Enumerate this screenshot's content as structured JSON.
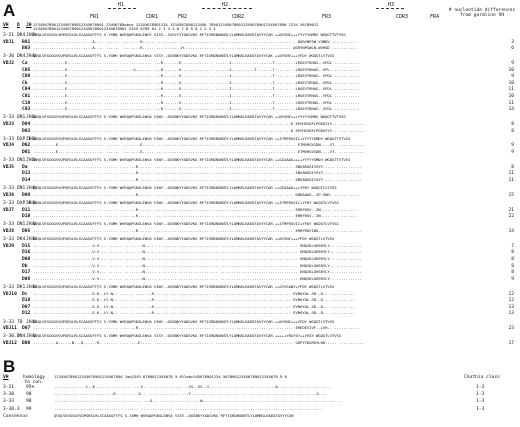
{
  "panels": {
    "a_letter": "A",
    "b_letter": "B"
  },
  "panel_a": {
    "regions": {
      "fr1": "FR1",
      "h1": "H1",
      "cdr1": "CDR1",
      "fr2": "FR2",
      "h2": "H2",
      "cdr2": "CDR2",
      "fr3": "FR3",
      "h3": "H3",
      "cdr3": "CDR3",
      "fr4": "FR4"
    },
    "header_note": "# nucleotide differences from germline VH",
    "col_vh": "VH",
    "col_d": "D",
    "col_jh": "JH",
    "numbering1": "1234567890123456789012345678901 23456789abcd 12345678901234 1234567890123456 7890123456789012345678901234567890 1234 56789012",
    "numbering2": "12345678901234567890123456789012345678901 2345 6789 01 2 3 4 5 6 7 8 9 0 1 2 3 4",
    "rows": [
      {
        "vh": "3-21",
        "d": "DK4",
        "jh": "JH6b",
        "seq": "EVQLVESGGGLVKPGGSLRLSCAASGFTFS S-YSMN WVRQAPGKGLEWVS SISS--SSSYIYYADSVKG RFTISRDNAKNSLYLQMNSLRAEDTAVYYCAR ++DYSNY+++YYYYYGMDV WGQGTTVTVSS",
        "n": ""
      },
      {
        "vh": "VDJ1",
        "d": "",
        "jh": "",
        "seq": "",
        "clone": "B01",
        "mut": "..........................A.... ...... ........R..... .......................... .................................. DGRYNPSW-YGMDV ...........",
        "n": "3"
      },
      {
        "vh": "",
        "d": "",
        "jh": "",
        "clone": "B03",
        "mut": "..........................A.... ...... ........R..... ...........H.............. ................................ DGRYNPSWLB-WVHGD ...........",
        "n": "6"
      },
      {
        "vh": "3-30",
        "d": "DK4",
        "jh": "JH4b",
        "seq": "QVQLVESGGGVVQPGRSLRLSCAASGFTFS S-YGMH WVRQAPGKGLEWVA VISY--DGSNKYYADSVKG RFTISRDNSKNTLYLQMNSLRAEDTAVYYCAK ++DYSNY+++YFDY WGQGTLVTVSS",
        "n": ""
      },
      {
        "vh": "VDJ2",
        "d": "",
        "jh": "",
        "clone": "Ca",
        "mut": "..............E............... ...... .............. ...R.......E.............. ......I..................T........ LRGEVTRHAS--VFDL ...........",
        "n": "9"
      },
      {
        "vh": "",
        "d": "",
        "jh": "",
        "clone": "C05",
        "mut": "..............E............... ...... ......S....... ...R.......E.............. ......I..........T.......T........ LRGEVTRHAS--VPL- ...........",
        "n": "10"
      },
      {
        "vh": "",
        "d": "",
        "jh": "",
        "clone": "C09",
        "mut": "..............E............... ...... .............. ...R.......E.............. ......I..................T........ LRGEVTRHAS--VFDL ...........",
        "n": "9"
      },
      {
        "vh": "",
        "d": "",
        "jh": "",
        "clone": "Cb",
        "mut": "..............E............... ...... .............. ...R.......E.............. ......I..................T........ LRGEVTRHAS--VFDL ...........",
        "n": "10"
      },
      {
        "vh": "",
        "d": "",
        "jh": "",
        "clone": "C04",
        "mut": "..............E............... ...... .............. ...R.......E.............. ......I..................T........ LRGEVTRHAS--VFDL ...........",
        "n": "11"
      },
      {
        "vh": "",
        "d": "",
        "jh": "",
        "clone": "C01",
        "mut": "..............E............... ...... .............. ...R.......E.............. ......I..................T........ LRGEVTRHAS--VFDL ...........",
        "n": "10"
      },
      {
        "vh": "",
        "d": "",
        "jh": "",
        "clone": "C10",
        "mut": "..............E............... ...... .............. ...R.......E.............. ......I..................T........ LRGEVTRHAS--VFDL ...........",
        "n": "11"
      },
      {
        "vh": "",
        "d": "",
        "jh": "",
        "clone": "C03",
        "mut": "..............E............... ...... .............. ...R.......E.............. ......I..................T........ LRGEVTRHAS--VFDL ...........",
        "n": "14"
      },
      {
        "vh": "3-33",
        "d": "DN1",
        "jh": "JH6b",
        "seq": "QVQLVESGGGVVQPGRSLRLSCAASGFTFS S-YGMH WVRQAPGKGLEWVA VIWY--DGSNKYYADSVKG RFTISRDNSKNTLYLQMNSLRAEDTAVYYCAR ++DYSNY+++YYYYYGMDV WGQGTTVTVSS",
        "n": ""
      },
      {
        "vh": "VDJ3",
        "d": "",
        "jh": "",
        "clone": "D04",
        "mut": ".............................. ...... .............. ......................... ..................................K EEVHSVQFLPGRGYYY-. ...........",
        "n": "8"
      },
      {
        "vh": "",
        "d": "",
        "jh": "",
        "clone": "D03",
        "mut": ".............................. ...... .............. ......................... ..................................K EEVHSVQFLPGRGYYY-. ...........",
        "n": "8"
      },
      {
        "vh": "3-33",
        "d": "DXP'1",
        "jh": "JH6b",
        "seq": "QVQLVESGGGVVQPGRSLRLSCAASGFTFS S-YGMH WVRQAPGKGLEWVA VIWY--DGSNKYYADSVKG RFTISRDNSKNTLYLQMNSLRAEDTAVYYCAR ++ITMFRGVII+YYYYYGMDV WGQGTTVTVSS",
        "n": ""
      },
      {
        "vh": "VDJ4",
        "d": "",
        "jh": "",
        "clone": "D02",
        "mut": "..........E.................... ...... ........E..... .......................... .................................. ETMVRGVIDN----VT. ...........",
        "n": "9"
      },
      {
        "vh": "",
        "d": "",
        "jh": "",
        "clone": "D01",
        "mut": "..........E.................... ...... ........E..... .......................... .................................. ETMVRGVIDN----VT. ...........",
        "n": "9"
      },
      {
        "vh": "3-33",
        "d": "DN1",
        "jh": "JH6b",
        "seq": "QVQLVESGGGVVQPGRSLRLSCAASGFTFS S-YGMH WVRQAPGKGLEWVA VIWY--DGSNKYYADSVKG RFTISRDNSKNTLYLQMNSLRAEDTAVYYCAR ++GIAAAG++++YYYYYGMDV WGQGTTVTVSS",
        "n": ""
      },
      {
        "vh": "VDJ5",
        "d": "",
        "jh": "",
        "clone": "Da",
        "mut": ".............................. ...... .......R...... .......................... .................................. ENVARGGIYGYY----. ...........",
        "n": "8"
      },
      {
        "vh": "",
        "d": "",
        "jh": "",
        "clone": "D13",
        "mut": ".............................. ...... .......R...... .......................... .................................. ENVARGGIYGYY----. ...........",
        "n": "11"
      },
      {
        "vh": "",
        "d": "",
        "jh": "",
        "clone": "D14",
        "mut": ".............................. ...... .......R...... .......................... .................................. ENVARGGIYGYY----. ...........",
        "n": "11"
      },
      {
        "vh": "3-33",
        "d": "DN1",
        "jh": "JH4b",
        "seq": "QVQLVESGGGVVQPGRSLRLSCAASGFTFS S-YGMH WVRQAPGKGLEWVA VIWY--DGSNKYYADSVKG RFTISRDNSKNTLYLQMNSLRAEDTAVYYCAR ++GIAAAG+++YFDY WGQGTLVTVSS",
        "n": ""
      },
      {
        "vh": "VDJ6",
        "d": "",
        "jh": "",
        "clone": "D09",
        "mut": ".............................. ...... .......R...... .......................... .................................. DQRAAAG--IP-VDR- ...........",
        "n": "15"
      },
      {
        "vh": "3-33",
        "d": "DXP'4",
        "jh": "JH4b",
        "seq": "QVQLVESGGGVVQPGRSLRLSCAASGFTFS S-YGMH WVRQAPGKGLEWVA VIWY--DGSNKYYADSVKG RFTISRDNSKNTLYLQMNSLRAEDTAVYYCAR ++ITMFRGVII+YFDY WGQGTLVTVSS",
        "n": ""
      },
      {
        "vh": "VDJ7",
        "d": "",
        "jh": "",
        "clone": "D11",
        "mut": ".............................. ...... .......R...... .......................... .................................. ERRFRGV--IN---. ...........",
        "n": "21"
      },
      {
        "vh": "",
        "d": "",
        "jh": "",
        "clone": "D10",
        "mut": ".............................. ...... .......R...... .......................... .................................. ERRFRGV--IN---. ...........",
        "n": "22"
      },
      {
        "vh": "3-33",
        "d": "DN1",
        "jh": "JH4b",
        "seq": "QVQLVESGGGVVQPGRSLRLSCAASGFTFS S-YGMH WVRQAPGKGLEWVA VIWY--DGSNKYYADSVKG RFTISRDNSKNTLYLQMNSLRAEDTAVYYCAR ++ITMFRGVII+YFDY WGQGTLVTVSS",
        "n": ""
      },
      {
        "vh": "VDJ8",
        "d": "",
        "jh": "",
        "clone": "D05",
        "mut": ".............................. ...... .......R...... .......................... .................................. ERRFRGVIDK------. ...........",
        "n": "14"
      },
      {
        "vh": "3-33",
        "d": "DK4",
        "jh": "JH4b",
        "seq": "QVQLVESGGGVVQPGRSLRLSCAASGFTFS S-YGMH WVRQAPGKGLEWVA VIWY--DGSNKYYADSVKG RFTISRDNSKNTLYLQMNSLRAEDTAVYYCAR ++DYSNY+++YFDY WGQGTLVTVSS",
        "n": ""
      },
      {
        "vh": "VDJ9",
        "d": "",
        "jh": "",
        "clone": "D15",
        "mut": "..........................V.V... ...... ........N..... .......................... .................................. ENQIKLGHSRYLY-- ...........",
        "n": "7"
      },
      {
        "vh": "",
        "d": "",
        "jh": "",
        "clone": "D16",
        "mut": "..........................V.V... ...... ........N..... .......................... .................................. ENQIKLGHSRYLY-- ...........",
        "n": "8"
      },
      {
        "vh": "",
        "d": "",
        "jh": "",
        "clone": "D08",
        "mut": "..........................V.V... ...... ........N..... .......................... .................................. ENQIKLGHSRYLY-- ...........",
        "n": "8"
      },
      {
        "vh": "",
        "d": "",
        "jh": "",
        "clone": "Db",
        "mut": "..........................V.V... ...... ........N..... .......................... .................................. ENQIKLGHSRYLY-- ...........",
        "n": "8"
      },
      {
        "vh": "",
        "d": "",
        "jh": "",
        "clone": "D17",
        "mut": "..........................V.V... ...... ........N..... .......................... .................................. ENQIKLGHSRYLY-- ...........",
        "n": "8"
      },
      {
        "vh": "",
        "d": "",
        "jh": "",
        "clone": "D06",
        "mut": "..........................V.V... ...... ........N..... .......................... .................................. ENQIKLGHSRYLY-- ...........",
        "n": "9"
      },
      {
        "vh": "3-33",
        "d": "DK1",
        "jh": "JH4b",
        "seq": "QVQLVESGGGVVQPGRSLRLSCAASGFTFS S-YGMH WVRQAPGKGLEWVA VIWY--DGSNKYYADSVKG RFTISRDNSKNTLYLQMNSLRAEDTAVYYCAR ++GYSSGWY+YFDY WGQGTLVTVSS",
        "n": ""
      },
      {
        "vh": "VDJ10",
        "d": "",
        "jh": "",
        "clone": "Dc",
        "mut": "..........................E.K..LY.N.. ...... .......R...... .................. .................................. EVRKYAL-SR--D-. ...........",
        "n": "12"
      },
      {
        "vh": "",
        "d": "",
        "jh": "",
        "clone": "D18",
        "mut": "..........................E.K..LY.N.. ...... .......R...... .................. .................................. EVRKYAL-SR--D-. ...........",
        "n": "12"
      },
      {
        "vh": "",
        "d": "",
        "jh": "",
        "clone": "D07",
        "mut": "..........................E.K..LY.N.. ...... .......R...... .................. .................................. EVRKYAL-SR--D-. ...........",
        "n": "13"
      },
      {
        "vh": "",
        "d": "",
        "jh": "",
        "clone": "D12",
        "mut": "..........................E.K..LY.N.. ...... .......R...... .................. .................................. EVRKYAL-SR--D-. ...........",
        "n": "13"
      },
      {
        "vh": "3-33",
        "d": "7D",
        "jh": "JH4b",
        "seq": "QVQLVESGGGVVQPGRSLRLSCAASGFTFS S-YGMH WVRQAPGKGLEWVA VIWY--DGSNKYYADSVKG RFTISRDNSKNTLYLQMNSLRAEDTAVYYCAR ++DYSNY+++YFDY WGQGTLVTVSS",
        "n": ""
      },
      {
        "vh": "VDJ11",
        "d": "",
        "jh": "",
        "clone": "D07",
        "mut": ".............................. ...... .......R...... .......................... .................................. EREDEVIVF--LVH-. ...........",
        "n": "23"
      },
      {
        "vh": "3-30.3",
        "d": "DN4",
        "jh": "JH4b",
        "seq": "QVQLVESGGGVVQPGRSLRLSCAASGFTFS S-YAMH WVRQAPGKGLEWVA VISY--DGSNKYYADSVKG RFTISRDNSKNTLYLQMNSLRAEDTAVYYCAR +++++YRGYSY++YFDY WGQGTLVTVSS",
        "n": ""
      },
      {
        "vh": "VDJ12",
        "d": "",
        "jh": "",
        "clone": "B00",
        "mut": "..........A......N...Q......R. ...... ........E..... .......................... .................................. GGPYYDSRGYLRH.---. ...........",
        "n": "17"
      }
    ]
  },
  "panel_b": {
    "col_vh": "VH",
    "col_homology": "homology to con.",
    "col_chothia": "Chothia class",
    "numbering": "123456789012345678901234567890 1ab2345 6789012345678 9 012abc345678901234 567890123456789012345678 9 0",
    "rows": [
      {
        "vh": "3-21",
        "hom": "95%",
        "seq": "..............L..K................ ...S.. .............. ..SS--SS..I................. ...........A.......................",
        "class": "1-3"
      },
      {
        "vh": "3-30",
        "hom": "98",
        "seq": "..........................R...... ...G.. .............. ...Y........................ ..............................S....",
        "class": "1-3"
      },
      {
        "vh": "3-33",
        "hom": "98",
        "seq": "...................................... ...G.. .............. ...W........................ ....................................",
        "class": "1-3"
      },
      {
        "vh": "3-30.3",
        "hom": "99",
        "seq": ".............................. ...... .............. ............................ ....................................",
        "class": "1-3"
      },
      {
        "vh": "Consensus",
        "hom": "",
        "seq": "QVQLVESGGGVVQPGRSLRLSCAASGFTFS S-YAMH WVRQAPGKGLEWVA VISY--DGSNKYYADSVKG RFTISRDNSKNTLYLQMNSLRAEDTAVYYCAR",
        "class": ""
      }
    ]
  }
}
